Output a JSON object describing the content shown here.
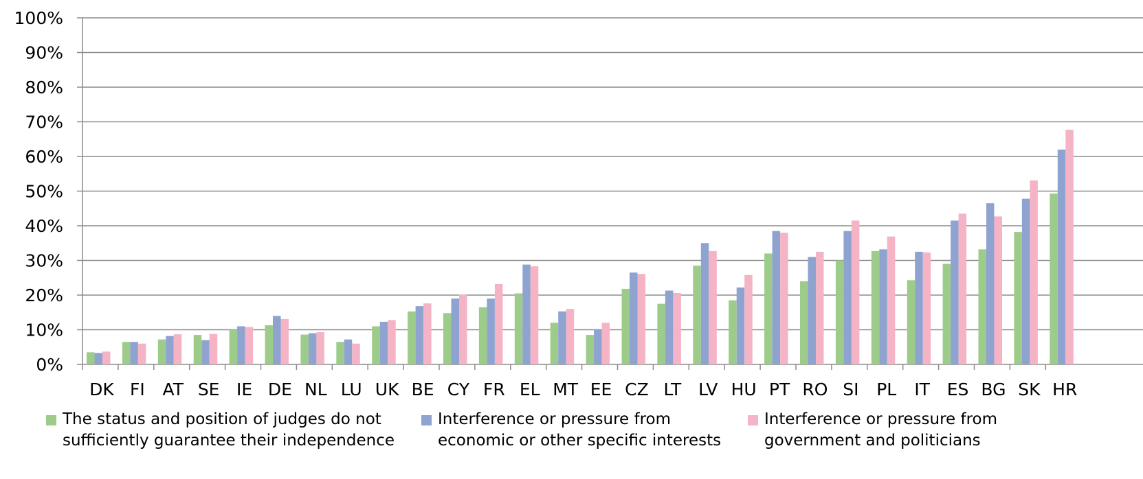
{
  "chart_data": {
    "type": "bar",
    "categories": [
      "DK",
      "FI",
      "AT",
      "SE",
      "IE",
      "DE",
      "NL",
      "LU",
      "UK",
      "BE",
      "CY",
      "FR",
      "EL",
      "MT",
      "EE",
      "CZ",
      "LT",
      "LV",
      "HU",
      "PT",
      "RO",
      "SI",
      "PL",
      "IT",
      "ES",
      "BG",
      "SK",
      "HR"
    ],
    "series": [
      {
        "name": "The status and position of judges do not sufficiently guarantee their independence",
        "color": "#9dcc8a",
        "values": [
          3.5,
          6.5,
          7.2,
          8.5,
          10,
          11.3,
          8.6,
          6.5,
          11,
          15.3,
          14.8,
          16.5,
          20.5,
          12,
          8.5,
          21.8,
          17.5,
          28.5,
          18.5,
          32,
          24,
          30,
          32.7,
          24.3,
          29,
          33.2,
          38.2,
          49.3
        ]
      },
      {
        "name": "Interference or pressure from economic or other specific interests",
        "color": "#8fa3d1",
        "values": [
          3.3,
          6.5,
          8.2,
          7,
          11,
          14,
          9,
          7.2,
          12.3,
          16.8,
          19,
          19,
          28.8,
          15.3,
          10.2,
          26.5,
          21.3,
          35,
          22.2,
          38.5,
          31,
          38.5,
          33.2,
          32.5,
          41.5,
          46.5,
          47.8,
          62
        ]
      },
      {
        "name": "Interference or pressure from government and politicians",
        "color": "#f4b4c6",
        "values": [
          3.7,
          6,
          8.7,
          8.8,
          10.8,
          13.1,
          9.3,
          6,
          12.8,
          17.6,
          20.1,
          23.2,
          28.3,
          16,
          12,
          26.1,
          20.6,
          32.7,
          25.8,
          38,
          32.5,
          41.5,
          36.9,
          32.3,
          43.5,
          42.7,
          53.1,
          67.7
        ]
      }
    ],
    "y_tick_labels": [
      "0%",
      "10%",
      "20%",
      "30%",
      "40%",
      "50%",
      "60%",
      "70%",
      "80%",
      "90%",
      "100%"
    ],
    "ylim": [
      0,
      100
    ],
    "grid": true,
    "legend_position": "bottom",
    "title": "",
    "xlabel": "",
    "ylabel": ""
  },
  "legend": [
    {
      "line1": "The status and position of judges do not",
      "line2": "sufficiently guarantee their independence"
    },
    {
      "line1": "Interference or pressure from",
      "line2": "economic or other specific interests"
    },
    {
      "line1": "Interference or pressure from",
      "line2": "government and politicians"
    }
  ]
}
